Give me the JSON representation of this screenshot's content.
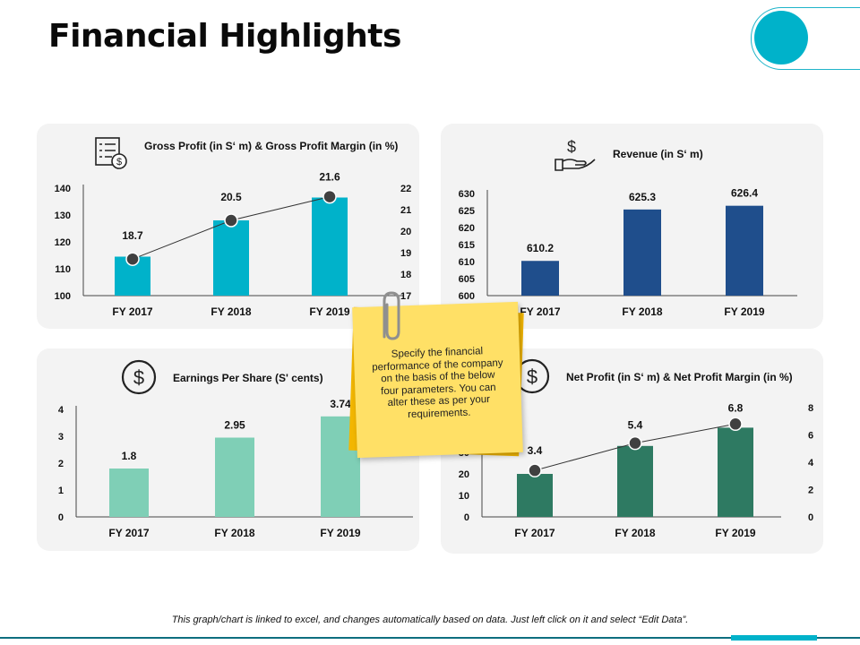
{
  "page": {
    "title": "Financial Highlights",
    "footer": "This graph/chart is linked to excel, and changes automatically based on data. Just left click on it and select “Edit Data”.",
    "note": "Specify the financial performance of the company on the basis of the below four parameters. You can alter these as per your requirements."
  },
  "colors": {
    "teal": "#00b2ca",
    "navy": "#1f4e8c",
    "mint": "#7fcfb6",
    "green": "#2e7a62",
    "panel": "#f3f3f3",
    "note": "#ffe066"
  },
  "chart_data": [
    {
      "id": "gross",
      "type": "bar",
      "title": "Gross Profit (in S‘ m) & Gross Profit Margin (in %)",
      "icon": "invoice-dollar-icon",
      "categories": [
        "FY 2017",
        "FY 2018",
        "FY 2019"
      ],
      "values": [
        114.5,
        128,
        136.5
      ],
      "ylim": [
        100,
        140
      ],
      "yticks": [
        100,
        110,
        120,
        130,
        140
      ],
      "line": {
        "values": [
          18.7,
          20.5,
          21.6
        ],
        "labels": [
          "18.7",
          "20.5",
          "21.6"
        ],
        "ylim": [
          17,
          22
        ],
        "yticks": [
          17,
          18,
          19,
          20,
          21,
          22
        ]
      },
      "color": "#00b2ca",
      "grid": false
    },
    {
      "id": "revenue",
      "type": "bar",
      "title": "Revenue (in S‘ m)",
      "icon": "hand-dollar-icon",
      "categories": [
        "FY 2017",
        "FY 2018",
        "FY 2019"
      ],
      "values": [
        610.2,
        625.3,
        626.4
      ],
      "labels": [
        "610.2",
        "625.3",
        "626.4"
      ],
      "ylim": [
        600,
        630
      ],
      "yticks": [
        600,
        605,
        610,
        615,
        620,
        625,
        630
      ],
      "color": "#1f4e8c",
      "grid": false
    },
    {
      "id": "eps",
      "type": "bar",
      "title": "Earnings Per Share (S' cents)",
      "icon": "dollar-circle-icon",
      "categories": [
        "FY 2017",
        "FY 2018",
        "FY 2019"
      ],
      "values": [
        1.8,
        2.95,
        3.74
      ],
      "labels": [
        "1.8",
        "2.95",
        "3.74"
      ],
      "ylim": [
        0,
        4
      ],
      "yticks": [
        0,
        1,
        2,
        3,
        4
      ],
      "color": "#7fcfb6",
      "grid": false
    },
    {
      "id": "net",
      "type": "bar",
      "title": "Net Profit (in S‘ m) & Net Profit Margin (in %)",
      "icon": "dollar-circle-icon",
      "categories": [
        "FY 2017",
        "FY 2018",
        "FY 2019"
      ],
      "values": [
        20,
        33,
        41.5
      ],
      "ylim": [
        0,
        50
      ],
      "yticks": [
        0,
        10,
        20,
        30
      ],
      "line": {
        "values": [
          3.4,
          5.4,
          6.8
        ],
        "labels": [
          "3.4",
          "5.4",
          "6.8"
        ],
        "ylim": [
          0,
          8
        ],
        "yticks": [
          0,
          2,
          4,
          6,
          8
        ]
      },
      "color": "#2e7a62",
      "grid": false
    }
  ]
}
